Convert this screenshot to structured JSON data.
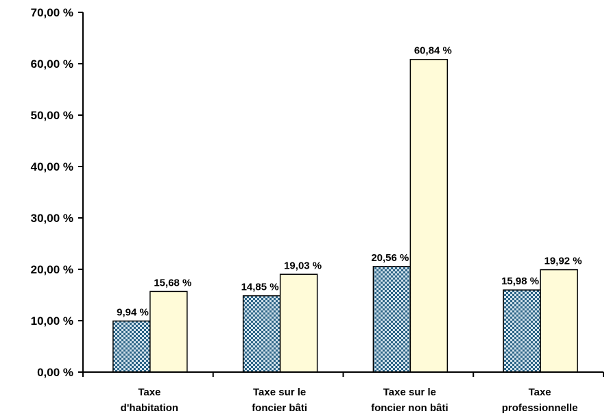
{
  "chart_data": {
    "type": "bar",
    "categories": [
      [
        "Taxe",
        "d'habitation"
      ],
      [
        "Taxe sur le",
        "foncier bâti"
      ],
      [
        "Taxe sur le",
        "foncier non bâti"
      ],
      [
        "Taxe",
        "professionnelle"
      ]
    ],
    "series": [
      {
        "values": [
          9.94,
          14.85,
          20.56,
          15.98
        ],
        "labels": [
          "9,94 %",
          "14,85 %",
          "20,56 %",
          "15,98 %"
        ],
        "color": "#5a8aa8",
        "pattern": "checkered"
      },
      {
        "values": [
          15.68,
          19.03,
          60.84,
          19.92
        ],
        "labels": [
          "15,68 %",
          "19,03 %",
          "60,84 %",
          "19,92 %"
        ],
        "color": "#fffbd8",
        "pattern": "solid"
      }
    ],
    "ylim": [
      0,
      70
    ],
    "yticks": [
      0,
      10,
      20,
      30,
      40,
      50,
      60,
      70
    ],
    "ytick_labels": [
      "0,00 %",
      "10,00 %",
      "20,00 %",
      "30,00 %",
      "40,00 %",
      "50,00 %",
      "60,00 %",
      "70,00 %"
    ],
    "grid": false,
    "legend": "none"
  }
}
